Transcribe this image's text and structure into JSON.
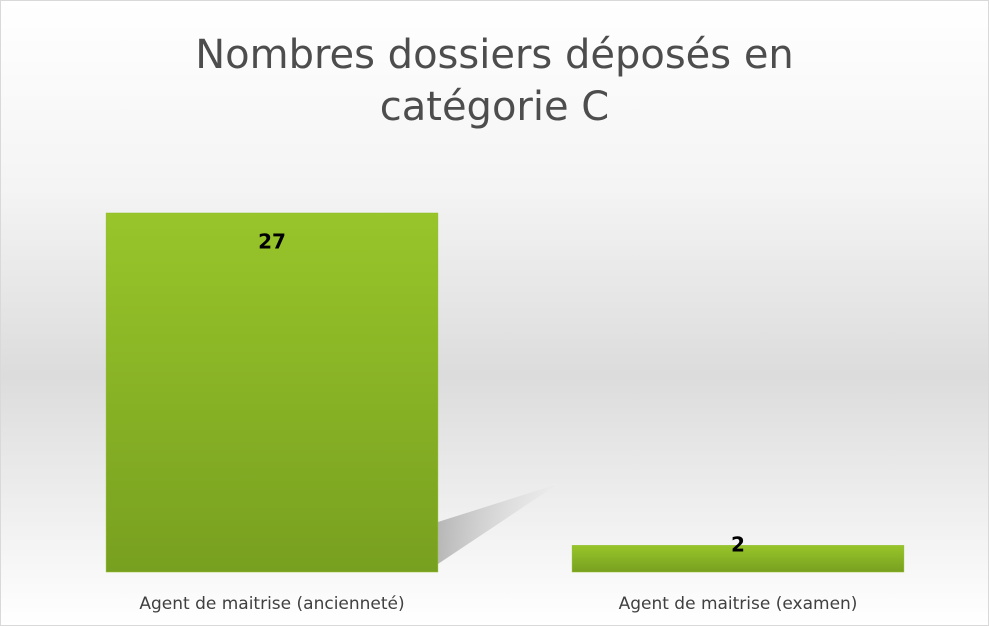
{
  "chart_data": {
    "type": "bar",
    "title": "Nombres dossiers déposés en catégorie C",
    "categories": [
      "Agent de maitrise (ancienneté)",
      "Agent de maitrise (examen)"
    ],
    "values": [
      27,
      2
    ],
    "color": "#8fbc26"
  }
}
